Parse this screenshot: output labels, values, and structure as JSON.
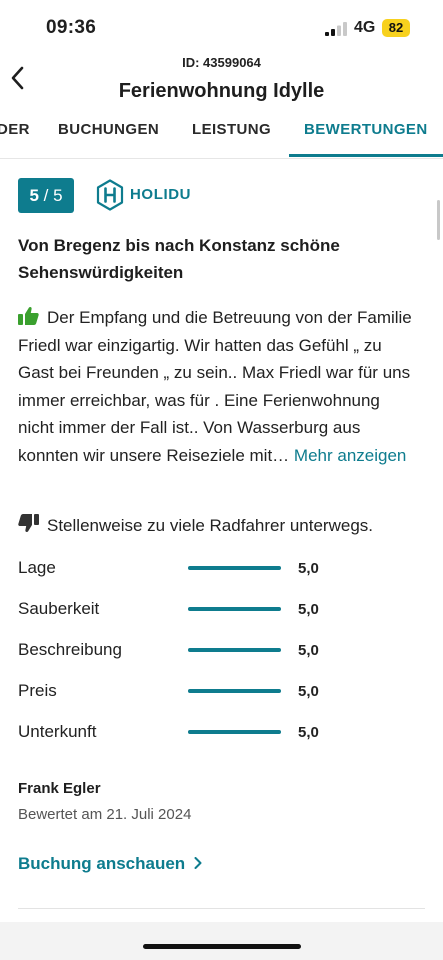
{
  "status_bar": {
    "time": "09:36",
    "network": "4G",
    "battery": "82"
  },
  "header": {
    "id_label": "ID: 43599064",
    "title": "Ferienwohnung Idylle"
  },
  "tabs": [
    {
      "label": "DER",
      "active": false
    },
    {
      "label": "BUCHUNGEN",
      "active": false
    },
    {
      "label": "LEISTUNG",
      "active": false
    },
    {
      "label": "BEWERTUNGEN",
      "active": true
    }
  ],
  "review": {
    "score": "5",
    "score_max": "/ 5",
    "source": "HOLIDU",
    "title": "Von Bregenz bis nach Konstanz schöne Sehenswürdigkeiten",
    "positive_text": "Der Empfang und die Betreuung von der Familie Friedl war einzigartig. Wir hatten das Gefühl „ zu Gast bei Freunden „ zu sein.. Max Friedl war für uns immer erreichbar, was für . Eine Ferienwohnung nicht immer der Fall ist.. Von Wasserburg aus konnten wir unsere Reiseziele mit…",
    "more_link": "Mehr anzeigen",
    "negative_text": "Stellenweise zu viele Radfahrer unterwegs.",
    "ratings": [
      {
        "label": "Lage",
        "value": "5,0",
        "fraction": 1.0
      },
      {
        "label": "Sauberkeit",
        "value": "5,0",
        "fraction": 1.0
      },
      {
        "label": "Beschreibung",
        "value": "5,0",
        "fraction": 1.0
      },
      {
        "label": "Preis",
        "value": "5,0",
        "fraction": 1.0
      },
      {
        "label": "Unterkunft",
        "value": "5,0",
        "fraction": 1.0
      }
    ],
    "author": "Frank Egler",
    "date": "Bewertet am 21. Juli 2024",
    "booking_link": "Buchung anschauen"
  },
  "colors": {
    "accent": "#0e7c8e",
    "battery": "#f7d11e",
    "positive_icon": "#3aa02e"
  },
  "icons": [
    "back-arrow-icon",
    "cellular-signal-icon",
    "holidu-logo-icon",
    "thumbs-up-icon",
    "thumbs-down-icon",
    "chevron-right-icon"
  ]
}
